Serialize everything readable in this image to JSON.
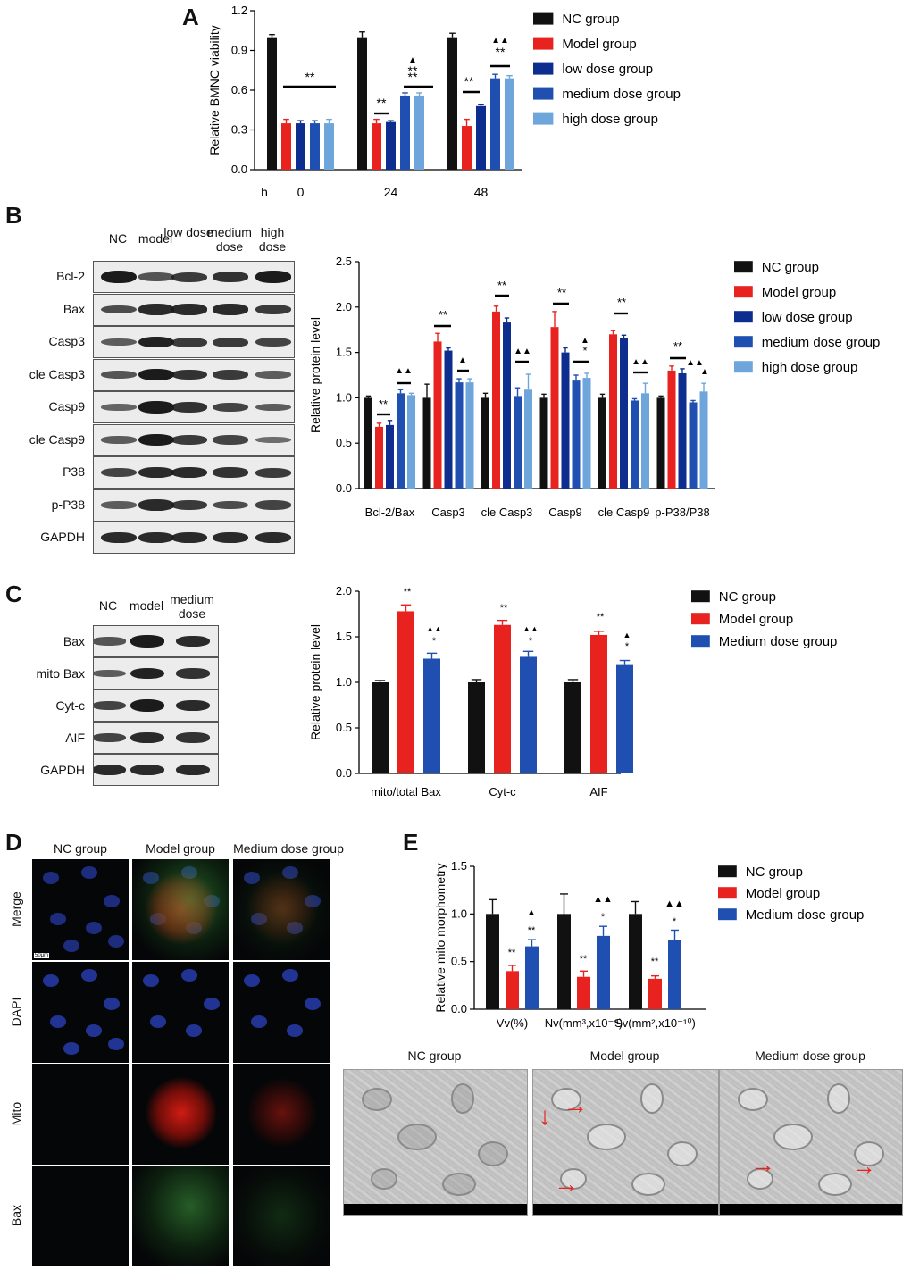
{
  "panels": {
    "a": "A",
    "b": "B",
    "c": "C",
    "d": "D",
    "e": "E"
  },
  "colors": {
    "nc": "#111111",
    "model": "#e8231f",
    "low": "#0d2e8f",
    "medium": "#1f4fb0",
    "high": "#6ea6dc"
  },
  "blot_b": {
    "lanes": [
      "NC",
      "model",
      "low dose",
      "medium dose",
      "high dose"
    ],
    "rows": [
      "Bcl-2",
      "Bax",
      "Casp3",
      "cle Casp3",
      "Casp9",
      "cle Casp9",
      "P38",
      "p-P38",
      "GAPDH"
    ]
  },
  "blot_c": {
    "lanes": [
      "NC",
      "model",
      "medium dose"
    ],
    "rows": [
      "Bax",
      "mito Bax",
      "Cyt-c",
      "AIF",
      "GAPDH"
    ]
  },
  "micro_d": {
    "columns": [
      "NC group",
      "Model group",
      "Medium dose group"
    ],
    "rows": [
      "Merge",
      "DAPI",
      "Mito",
      "Bax"
    ],
    "scale": "50μm"
  },
  "tem_e": {
    "columns": [
      "NC group",
      "Model group",
      "Medium dose group"
    ]
  },
  "chart_data": [
    {
      "id": "A",
      "type": "bar",
      "ylabel": "Relative BMNC viability",
      "xprefix": "h",
      "categories": [
        "0",
        "24",
        "48"
      ],
      "ylim": [
        0,
        1.2
      ],
      "yticks": [
        "0.0",
        "0.3",
        "0.6",
        "0.9",
        "1.2"
      ],
      "series": [
        {
          "name": "NC group",
          "values": [
            1.0,
            1.0,
            1.0
          ],
          "err": [
            0.02,
            0.04,
            0.03
          ]
        },
        {
          "name": "Model group",
          "values": [
            0.35,
            0.35,
            0.33
          ],
          "err": [
            0.03,
            0.03,
            0.05
          ]
        },
        {
          "name": "low dose group",
          "values": [
            0.35,
            0.36,
            0.48
          ],
          "err": [
            0.02,
            0.01,
            0.01
          ]
        },
        {
          "name": "medium dose group",
          "values": [
            0.35,
            0.56,
            0.69
          ],
          "err": [
            0.02,
            0.02,
            0.03
          ]
        },
        {
          "name": "high dose group",
          "values": [
            0.35,
            0.56,
            0.69
          ],
          "err": [
            0.03,
            0.02,
            0.02
          ]
        }
      ],
      "annotations": [
        "**",
        "**",
        "**",
        "▲",
        "**",
        "**",
        "▲▲",
        "**"
      ]
    },
    {
      "id": "B",
      "type": "bar",
      "ylabel": "Relative protein level",
      "categories": [
        "Bcl-2/Bax",
        "Casp3",
        "cle Casp3",
        "Casp9",
        "cle Casp9",
        "p-P38/P38"
      ],
      "ylim": [
        0,
        2.5
      ],
      "yticks": [
        "0.0",
        "0.5",
        "1.0",
        "1.5",
        "2.0",
        "2.5"
      ],
      "series": [
        {
          "name": "NC group",
          "values": [
            1.0,
            1.0,
            1.0,
            1.0,
            1.0,
            1.0
          ],
          "err": [
            0.02,
            0.15,
            0.05,
            0.04,
            0.04,
            0.02
          ]
        },
        {
          "name": "Model group",
          "values": [
            0.68,
            1.62,
            1.95,
            1.78,
            1.7,
            1.3
          ],
          "err": [
            0.04,
            0.09,
            0.06,
            0.17,
            0.04,
            0.05
          ]
        },
        {
          "name": "low dose group",
          "values": [
            0.7,
            1.52,
            1.83,
            1.5,
            1.66,
            1.27
          ],
          "err": [
            0.05,
            0.03,
            0.05,
            0.05,
            0.03,
            0.05
          ]
        },
        {
          "name": "medium dose group",
          "values": [
            1.05,
            1.17,
            1.02,
            1.19,
            0.97,
            0.95
          ],
          "err": [
            0.04,
            0.04,
            0.09,
            0.06,
            0.02,
            0.02
          ]
        },
        {
          "name": "high dose group",
          "values": [
            1.03,
            1.17,
            1.09,
            1.22,
            1.05,
            1.07
          ],
          "err": [
            0.02,
            0.04,
            0.17,
            0.05,
            0.11,
            0.09
          ]
        }
      ],
      "annotations": [
        "**",
        "▲▲",
        "**",
        "▲",
        "**",
        "▲▲",
        "**",
        "▲",
        "*",
        "**",
        "▲▲",
        "**",
        "▲▲",
        "▲"
      ]
    },
    {
      "id": "C",
      "type": "bar",
      "ylabel": "Relative protein level",
      "categories": [
        "mito/total Bax",
        "Cyt-c",
        "AIF"
      ],
      "ylim": [
        0,
        2.0
      ],
      "yticks": [
        "0.0",
        "0.5",
        "1.0",
        "1.5",
        "2.0"
      ],
      "series": [
        {
          "name": "NC group",
          "values": [
            1.0,
            1.0,
            1.0
          ],
          "err": [
            0.02,
            0.03,
            0.03
          ]
        },
        {
          "name": "Model group",
          "values": [
            1.78,
            1.63,
            1.52
          ],
          "err": [
            0.07,
            0.05,
            0.04
          ]
        },
        {
          "name": "Medium dose group",
          "values": [
            1.26,
            1.28,
            1.19
          ],
          "err": [
            0.06,
            0.06,
            0.05
          ]
        }
      ],
      "annotations": [
        "**",
        "▲▲",
        "*",
        "**",
        "▲▲",
        "*",
        "**",
        "▲",
        "*"
      ]
    },
    {
      "id": "E",
      "type": "bar",
      "ylabel": "Relative mito morphometry",
      "categories": [
        "Vv(%)",
        "Nv(mm³,x10⁻⁹)",
        "Sv(mm²,x10⁻¹⁰)"
      ],
      "ylim": [
        0,
        1.5
      ],
      "yticks": [
        "0.0",
        "0.5",
        "1.0",
        "1.5"
      ],
      "series": [
        {
          "name": "NC group",
          "values": [
            1.0,
            1.0,
            1.0
          ],
          "err": [
            0.15,
            0.21,
            0.13
          ]
        },
        {
          "name": "Model group",
          "values": [
            0.4,
            0.34,
            0.32
          ],
          "err": [
            0.06,
            0.06,
            0.03
          ]
        },
        {
          "name": "Medium dose group",
          "values": [
            0.66,
            0.77,
            0.73
          ],
          "err": [
            0.07,
            0.1,
            0.1
          ]
        }
      ],
      "annotations": [
        "**",
        "▲",
        "**",
        "**",
        "▲▲",
        "*",
        "**",
        "▲▲",
        "*"
      ]
    }
  ]
}
